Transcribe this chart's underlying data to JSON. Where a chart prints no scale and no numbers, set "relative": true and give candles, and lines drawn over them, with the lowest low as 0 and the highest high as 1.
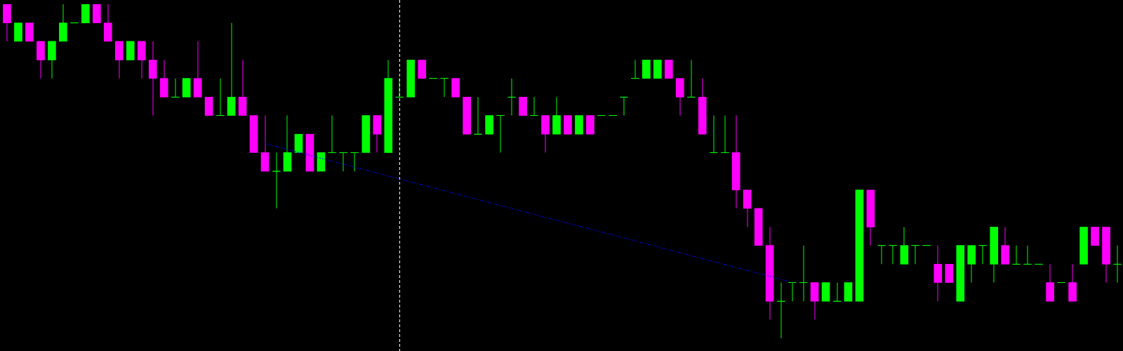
{
  "chart_data": {
    "type": "candlestick",
    "relative": true,
    "tick_labels": false,
    "categories": [
      null,
      null,
      null,
      null,
      null,
      null,
      null,
      null,
      null,
      null,
      null,
      null,
      null,
      null,
      null,
      null,
      null,
      null,
      null,
      null,
      null,
      null,
      null,
      null,
      null,
      null,
      null,
      null,
      null,
      null,
      null,
      null,
      null,
      null,
      null,
      null,
      null,
      null,
      null,
      null,
      null,
      null,
      null,
      null,
      null,
      null,
      null,
      null,
      null,
      null,
      null,
      null,
      null,
      null,
      null,
      null,
      null,
      null,
      null,
      null,
      null,
      null,
      null,
      null,
      null,
      null,
      null,
      null,
      null,
      null,
      null,
      null,
      null,
      null,
      null,
      null,
      null,
      null,
      null,
      null,
      null,
      null,
      null,
      null,
      null,
      null,
      null,
      null,
      null,
      null,
      null,
      null,
      null,
      null,
      null,
      null,
      null,
      null,
      null,
      null
    ],
    "ohlc": [
      [
        1,
        1,
        0.889,
        0.944
      ],
      [
        0.889,
        0.944,
        0.889,
        0.944
      ],
      [
        0.944,
        0.944,
        0.889,
        0.889
      ],
      [
        0.889,
        0.889,
        0.778,
        0.833
      ],
      [
        0.833,
        0.889,
        0.778,
        0.889
      ],
      [
        0.889,
        1,
        0.889,
        0.944
      ],
      [
        0.944,
        0.944,
        0.944,
        0.944
      ],
      [
        0.944,
        1,
        0.944,
        1
      ],
      [
        1,
        1,
        0.944,
        0.944
      ],
      [
        0.944,
        1,
        0.889,
        0.889
      ],
      [
        0.889,
        0.889,
        0.778,
        0.833
      ],
      [
        0.833,
        0.889,
        0.833,
        0.889
      ],
      [
        0.889,
        0.889,
        0.778,
        0.833
      ],
      [
        0.833,
        0.889,
        0.667,
        0.778
      ],
      [
        0.778,
        0.833,
        0.722,
        0.722
      ],
      [
        0.722,
        0.778,
        0.722,
        0.722
      ],
      [
        0.722,
        0.778,
        0.722,
        0.778
      ],
      [
        0.778,
        0.889,
        0.722,
        0.722
      ],
      [
        0.722,
        0.722,
        0.667,
        0.667
      ],
      [
        0.667,
        0.778,
        0.667,
        0.667
      ],
      [
        0.667,
        0.944,
        0.667,
        0.722
      ],
      [
        0.722,
        0.833,
        0.667,
        0.667
      ],
      [
        0.667,
        0.667,
        0.556,
        0.556
      ],
      [
        0.556,
        0.667,
        0.5,
        0.5
      ],
      [
        0.5,
        0.556,
        0.389,
        0.5
      ],
      [
        0.5,
        0.667,
        0.5,
        0.556
      ],
      [
        0.556,
        0.611,
        0.556,
        0.611
      ],
      [
        0.611,
        0.611,
        0.5,
        0.5
      ],
      [
        0.5,
        0.556,
        0.5,
        0.556
      ],
      [
        0.556,
        0.667,
        0.556,
        0.556
      ],
      [
        0.556,
        0.556,
        0.5,
        0.556
      ],
      [
        0.556,
        0.556,
        0.5,
        0.556
      ],
      [
        0.556,
        0.667,
        0.556,
        0.667
      ],
      [
        0.667,
        0.667,
        0.556,
        0.611
      ],
      [
        0.556,
        0.833,
        0.556,
        0.778
      ],
      [
        0.722,
        0.778,
        0.722,
        0.722
      ],
      [
        0.722,
        0.833,
        0.722,
        0.833
      ],
      [
        0.833,
        0.833,
        0.778,
        0.778
      ],
      [
        0.778,
        0.778,
        0.778,
        0.778
      ],
      [
        0.778,
        0.778,
        0.722,
        0.778
      ],
      [
        0.778,
        0.778,
        0.722,
        0.722
      ],
      [
        0.722,
        0.722,
        0.611,
        0.611
      ],
      [
        0.611,
        0.722,
        0.611,
        0.611
      ],
      [
        0.611,
        0.667,
        0.611,
        0.667
      ],
      [
        0.667,
        0.667,
        0.556,
        0.667
      ],
      [
        0.722,
        0.778,
        0.667,
        0.722
      ],
      [
        0.722,
        0.722,
        0.667,
        0.667
      ],
      [
        0.667,
        0.722,
        0.667,
        0.667
      ],
      [
        0.667,
        0.667,
        0.556,
        0.611
      ],
      [
        0.611,
        0.722,
        0.611,
        0.667
      ],
      [
        0.667,
        0.667,
        0.611,
        0.611
      ],
      [
        0.611,
        0.667,
        0.611,
        0.667
      ],
      [
        0.667,
        0.667,
        0.611,
        0.611
      ],
      [
        0.667,
        0.667,
        0.667,
        0.667
      ],
      [
        0.667,
        0.667,
        0.667,
        0.667
      ],
      [
        0.722,
        0.722,
        0.667,
        0.722
      ],
      [
        0.778,
        0.833,
        0.778,
        0.778
      ],
      [
        0.778,
        0.833,
        0.778,
        0.833
      ],
      [
        0.778,
        0.833,
        0.778,
        0.833
      ],
      [
        0.833,
        0.833,
        0.778,
        0.778
      ],
      [
        0.778,
        0.778,
        0.667,
        0.722
      ],
      [
        0.722,
        0.833,
        0.722,
        0.722
      ],
      [
        0.722,
        0.778,
        0.611,
        0.611
      ],
      [
        0.556,
        0.667,
        0.556,
        0.556
      ],
      [
        0.556,
        0.667,
        0.556,
        0.556
      ],
      [
        0.556,
        0.667,
        0.389,
        0.444
      ],
      [
        0.444,
        0.444,
        0.333,
        0.389
      ],
      [
        0.389,
        0.389,
        0.278,
        0.278
      ],
      [
        0.278,
        0.333,
        0.056,
        0.111
      ],
      [
        0.111,
        0.167,
        0,
        0.111
      ],
      [
        0.167,
        0.167,
        0.111,
        0.167
      ],
      [
        0.167,
        0.278,
        0.111,
        0.167
      ],
      [
        0.167,
        0.167,
        0.056,
        0.111
      ],
      [
        0.111,
        0.167,
        0.111,
        0.167
      ],
      [
        0.111,
        0.167,
        0.111,
        0.111
      ],
      [
        0.111,
        0.167,
        0.111,
        0.167
      ],
      [
        0.111,
        0.444,
        0.111,
        0.444
      ],
      [
        0.444,
        0.444,
        0.278,
        0.333
      ],
      [
        0.278,
        0.278,
        0.222,
        0.278
      ],
      [
        0.278,
        0.278,
        0.222,
        0.278
      ],
      [
        0.222,
        0.333,
        0.222,
        0.278
      ],
      [
        0.278,
        0.278,
        0.222,
        0.278
      ],
      [
        0.278,
        0.278,
        0.278,
        0.278
      ],
      [
        0.222,
        0.278,
        0.111,
        0.167
      ],
      [
        0.222,
        0.222,
        0.167,
        0.167
      ],
      [
        0.111,
        0.278,
        0.111,
        0.278
      ],
      [
        0.222,
        0.278,
        0.167,
        0.278
      ],
      [
        0.278,
        0.278,
        0.222,
        0.278
      ],
      [
        0.222,
        0.333,
        0.167,
        0.333
      ],
      [
        0.278,
        0.333,
        0.222,
        0.222
      ],
      [
        0.222,
        0.278,
        0.222,
        0.222
      ],
      [
        0.222,
        0.278,
        0.222,
        0.222
      ],
      [
        0.222,
        0.222,
        0.222,
        0.222
      ],
      [
        0.167,
        0.222,
        0.111,
        0.111
      ],
      [
        0.167,
        0.167,
        0.167,
        0.167
      ],
      [
        0.167,
        0.222,
        0.111,
        0.111
      ],
      [
        0.222,
        0.333,
        0.222,
        0.333
      ],
      [
        0.333,
        0.333,
        0.278,
        0.278
      ],
      [
        0.333,
        0.333,
        0.167,
        0.222
      ],
      [
        0.222,
        0.278,
        0.167,
        0.222
      ]
    ],
    "colors": [
      "#ff00ff",
      "#00ff00",
      "#ff00ff",
      "#ff00ff",
      "#00ff00",
      "#00ff00",
      "#00ff00",
      "#00ff00",
      "#ff00ff",
      "#ff00ff",
      "#ff00ff",
      "#00ff00",
      "#ff00ff",
      "#ff00ff",
      "#ff00ff",
      "#00ff00",
      "#00ff00",
      "#ff00ff",
      "#ff00ff",
      "#00ff00",
      "#00ff00",
      "#ff00ff",
      "#ff00ff",
      "#ff00ff",
      "#00ff00",
      "#00ff00",
      "#00ff00",
      "#ff00ff",
      "#00ff00",
      "#00ff00",
      "#00ff00",
      "#00ff00",
      "#00ff00",
      "#ff00ff",
      "#00ff00",
      "#00ff00",
      "#00ff00",
      "#ff00ff",
      "#00ff00",
      "#00ff00",
      "#ff00ff",
      "#ff00ff",
      "#00ff00",
      "#00ff00",
      "#00ff00",
      "#00ff00",
      "#ff00ff",
      "#00ff00",
      "#ff00ff",
      "#00ff00",
      "#ff00ff",
      "#00ff00",
      "#ff00ff",
      "#00ff00",
      "#00ff00",
      "#00ff00",
      "#00ff00",
      "#00ff00",
      "#00ff00",
      "#ff00ff",
      "#ff00ff",
      "#00ff00",
      "#ff00ff",
      "#00ff00",
      "#00ff00",
      "#ff00ff",
      "#ff00ff",
      "#ff00ff",
      "#ff00ff",
      "#00ff00",
      "#00ff00",
      "#00ff00",
      "#ff00ff",
      "#00ff00",
      "#00ff00",
      "#00ff00",
      "#00ff00",
      "#ff00ff",
      "#00ff00",
      "#00ff00",
      "#00ff00",
      "#00ff00",
      "#00ff00",
      "#ff00ff",
      "#ff00ff",
      "#00ff00",
      "#00ff00",
      "#00ff00",
      "#00ff00",
      "#ff00ff",
      "#00ff00",
      "#00ff00",
      "#00ff00",
      "#ff00ff",
      "#00ff00",
      "#ff00ff",
      "#00ff00",
      "#ff00ff",
      "#ff00ff",
      "#00ff00"
    ],
    "series": [
      {
        "type": "line",
        "values": [
          null,
          null,
          null,
          null,
          null,
          null,
          null,
          null,
          null,
          null,
          null,
          null,
          null,
          null,
          null,
          null,
          null,
          null,
          null,
          null,
          null,
          null,
          null,
          0.583,
          null,
          null,
          null,
          null,
          null,
          null,
          null,
          null,
          null,
          null,
          null,
          null,
          null,
          null,
          null,
          null,
          null,
          null,
          null,
          null,
          null,
          null,
          null,
          null,
          null,
          null,
          null,
          null,
          null,
          null,
          null,
          null,
          null,
          null,
          null,
          null,
          null,
          null,
          null,
          null,
          null,
          null,
          null,
          null,
          null,
          null,
          0.168,
          null,
          null,
          null,
          null,
          null,
          null,
          null,
          null,
          null,
          null,
          null,
          null,
          null,
          null,
          null,
          null,
          null,
          null,
          null,
          null,
          null,
          null,
          null,
          null,
          null,
          null,
          null,
          null,
          null
        ],
        "color": "#0000ff",
        "line_style": "dotted"
      }
    ]
  }
}
